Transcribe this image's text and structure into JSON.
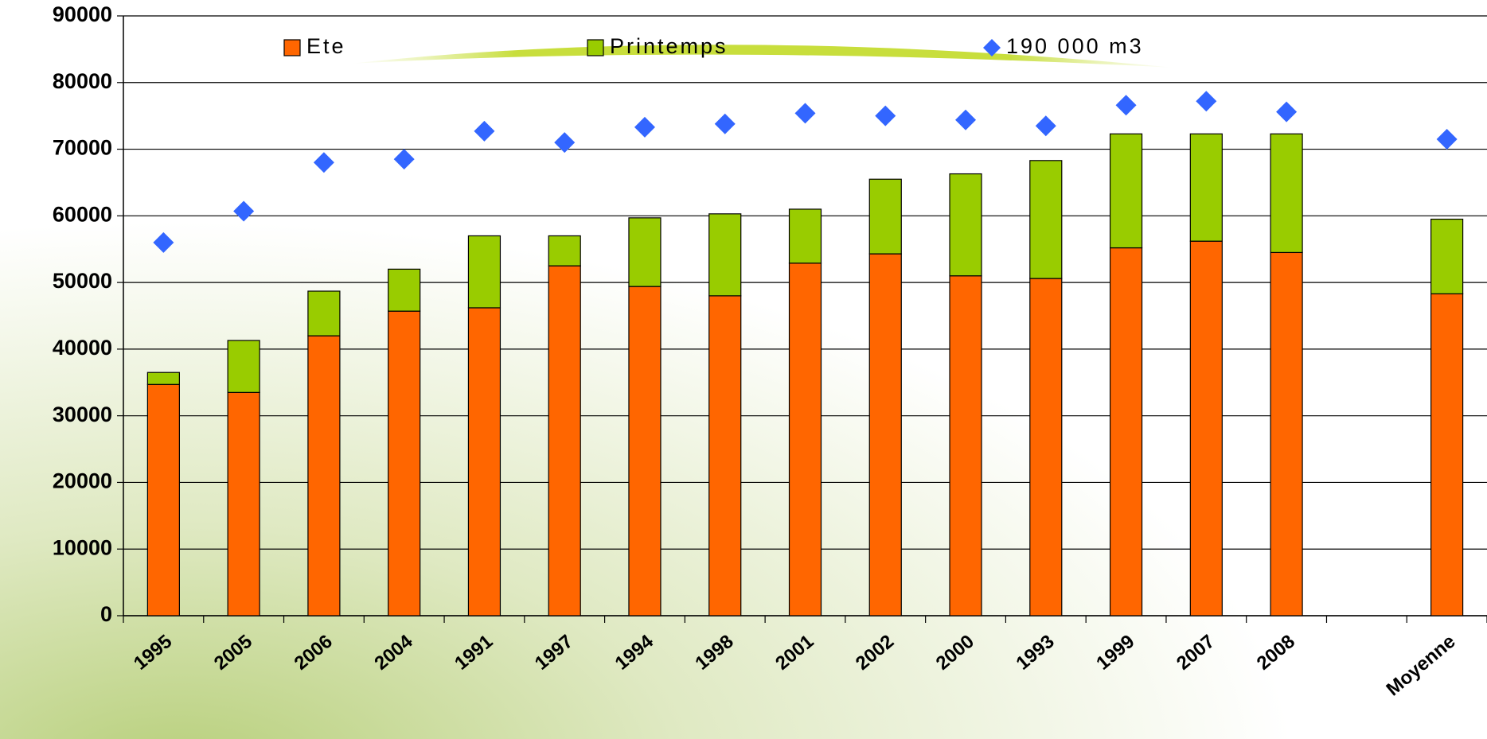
{
  "chart_data": {
    "type": "bar",
    "stacked": true,
    "categories": [
      "1995",
      "2005",
      "2006",
      "2004",
      "1991",
      "1997",
      "1994",
      "1998",
      "2001",
      "2002",
      "2000",
      "1993",
      "1999",
      "2007",
      "2008",
      null,
      "Moyenne"
    ],
    "series": [
      {
        "name": "Ete",
        "type": "bar",
        "color": "#ff6600",
        "values": [
          34700,
          33500,
          42000,
          45700,
          46200,
          52500,
          49400,
          48000,
          52900,
          54300,
          51000,
          50600,
          55200,
          56200,
          54500,
          null,
          48300
        ]
      },
      {
        "name": "Printemps",
        "type": "bar",
        "color": "#99cc00",
        "values": [
          1800,
          7800,
          6700,
          6300,
          10800,
          4500,
          10300,
          12300,
          8100,
          11200,
          15300,
          17700,
          17100,
          16100,
          17800,
          null,
          11200
        ]
      },
      {
        "name": "190 000 m3",
        "type": "scatter",
        "color": "#3366ff",
        "values": [
          56000,
          60700,
          68000,
          68500,
          72700,
          71000,
          73300,
          73800,
          75400,
          75000,
          74400,
          73500,
          76600,
          77200,
          75600,
          null,
          71500
        ]
      }
    ],
    "ylim": [
      0,
      90000
    ],
    "yticks": [
      0,
      10000,
      20000,
      30000,
      40000,
      50000,
      60000,
      70000,
      80000,
      90000
    ],
    "grid": true,
    "legend": "top"
  }
}
